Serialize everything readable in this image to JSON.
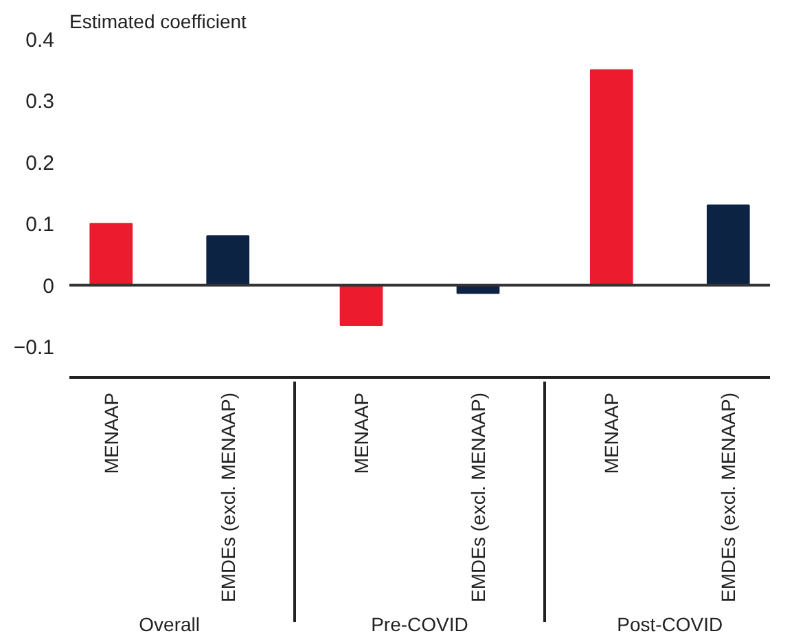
{
  "chart_data": {
    "type": "bar",
    "ylabel": "Estimated coefficient",
    "categories": [
      "MENAAP",
      "EMDEs (excl. MENAAP)",
      "MENAAP",
      "EMDEs (excl. MENAAP)",
      "MENAAP",
      "EMDEs (excl. MENAAP)"
    ],
    "values": [
      0.1,
      0.08,
      -0.065,
      -0.013,
      0.35,
      0.13
    ],
    "colors": [
      "#ec1c2e",
      "#0d2344",
      "#ec1c2e",
      "#0d2344",
      "#ec1c2e",
      "#0d2344"
    ],
    "annotations": [
      "Overall",
      "Pre-COVID",
      "Post-COVID"
    ],
    "ylim": [
      -0.15,
      0.4
    ],
    "yticks": [
      {
        "value": -0.1,
        "label": "−0.1"
      },
      0,
      0.1,
      0.2,
      0.3,
      0.4
    ],
    "ref_lines": [
      {
        "axis": "y",
        "value": 0,
        "color": "#333333"
      }
    ],
    "grid": false
  }
}
